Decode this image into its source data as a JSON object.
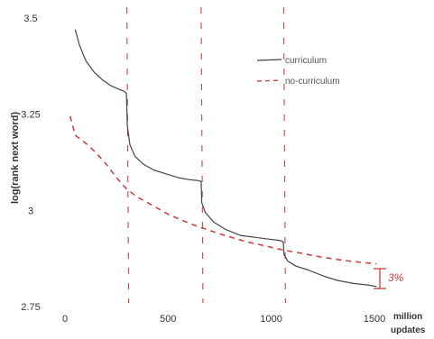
{
  "chart_data": {
    "type": "line",
    "ylabel": "log(rank next word)",
    "xlabel": "million updates",
    "xlim": [
      0,
      1600
    ],
    "ylim": [
      2.75,
      3.5
    ],
    "x_ticks": [
      "0",
      "500",
      "1000",
      "1500"
    ],
    "x_tick_values": [
      0,
      500,
      1000,
      1500
    ],
    "y_ticks": [
      "3.5",
      "3.25",
      "3",
      "2.75"
    ],
    "y_tick_values": [
      3.5,
      3.25,
      3.0,
      2.75
    ],
    "grid": false,
    "legend_position": "top-right",
    "stage_boundaries": [
      300,
      660,
      1060
    ],
    "annotation": "3%",
    "series": [
      {
        "name": "curriculum",
        "color": "#444444",
        "style": "solid",
        "x": [
          50,
          70,
          100,
          140,
          180,
          220,
          260,
          285,
          298,
          302,
          315,
          340,
          380,
          430,
          490,
          550,
          600,
          640,
          660,
          663,
          680,
          720,
          780,
          850,
          920,
          990,
          1040,
          1058,
          1062,
          1080,
          1120,
          1180,
          1250,
          1320,
          1400,
          1470,
          1510
        ],
        "y": [
          3.47,
          3.43,
          3.39,
          3.36,
          3.34,
          3.325,
          3.315,
          3.31,
          3.305,
          3.22,
          3.17,
          3.14,
          3.12,
          3.105,
          3.095,
          3.085,
          3.08,
          3.078,
          3.075,
          3.02,
          2.995,
          2.97,
          2.95,
          2.935,
          2.93,
          2.925,
          2.922,
          2.918,
          2.885,
          2.868,
          2.855,
          2.845,
          2.83,
          2.818,
          2.81,
          2.806,
          2.802
        ]
      },
      {
        "name": "no-curriculum",
        "color": "#cc4444",
        "style": "dashed",
        "x": [
          25,
          50,
          100,
          150,
          200,
          250,
          300,
          350,
          400,
          450,
          500,
          550,
          600,
          650,
          700,
          750,
          800,
          850,
          900,
          950,
          1000,
          1050,
          1100,
          1150,
          1200,
          1250,
          1300,
          1350,
          1400,
          1450,
          1500,
          1510
        ],
        "y": [
          3.245,
          3.195,
          3.175,
          3.15,
          3.12,
          3.085,
          3.055,
          3.035,
          3.02,
          3.005,
          2.99,
          2.978,
          2.967,
          2.957,
          2.948,
          2.939,
          2.931,
          2.923,
          2.916,
          2.91,
          2.904,
          2.898,
          2.893,
          2.888,
          2.883,
          2.878,
          2.874,
          2.87,
          2.867,
          2.864,
          2.862,
          2.861
        ]
      }
    ]
  }
}
